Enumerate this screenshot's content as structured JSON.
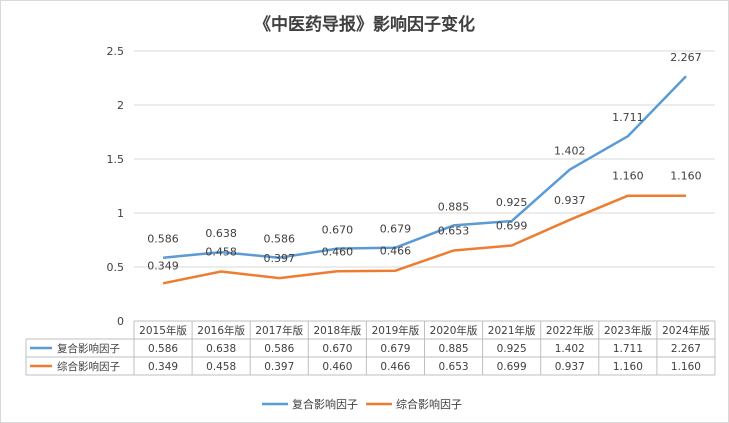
{
  "chart_data": {
    "type": "line",
    "title": "《中医药导报》影响因子变化",
    "categories": [
      "2015年版",
      "2016年版",
      "2017年版",
      "2018年版",
      "2019年版",
      "2020年版",
      "2021年版",
      "2022年版",
      "2023年版",
      "2024年版"
    ],
    "series": [
      {
        "name": "复合影响因子",
        "color": "#5b9bd5",
        "values": [
          0.586,
          0.638,
          0.586,
          0.67,
          0.679,
          0.885,
          0.925,
          1.402,
          1.711,
          2.267
        ],
        "labels": [
          "0.586",
          "0.638",
          "0.586",
          "0.670",
          "0.679",
          "0.885",
          "0.925",
          "1.402",
          "1.711",
          "2.267"
        ]
      },
      {
        "name": "综合影响因子",
        "color": "#ed7d31",
        "values": [
          0.349,
          0.458,
          0.397,
          0.46,
          0.466,
          0.653,
          0.699,
          0.937,
          1.16,
          1.16
        ],
        "labels": [
          "0.349",
          "0.458",
          "0.397",
          "0.460",
          "0.466",
          "0.653",
          "0.699",
          "0.937",
          "1.160",
          "1.160"
        ]
      }
    ],
    "ylim": [
      0,
      2.5
    ],
    "yticks": [
      "0",
      "0.5",
      "1",
      "1.5",
      "2",
      "2.5"
    ],
    "grid": true,
    "legend": "bottom",
    "data_table": true
  }
}
